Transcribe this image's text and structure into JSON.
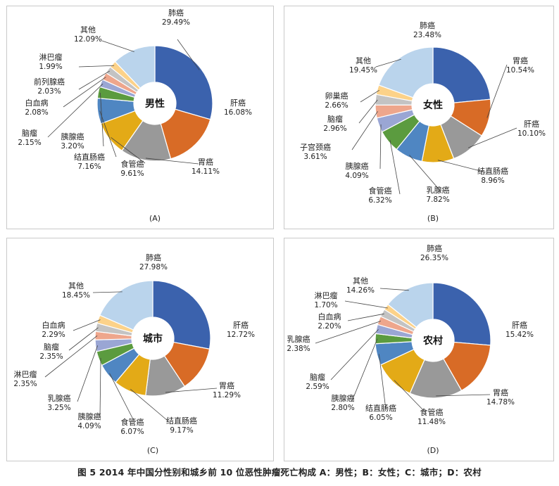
{
  "figure_caption": "图 5   2014 年中国分性别和城乡前 10 位恶性肿瘤死亡构成    A：男性；B：女性；C：城市；D：农村",
  "colors": [
    "#3b62ad",
    "#d86b26",
    "#999999",
    "#e3aa17",
    "#4f86c2",
    "#5b9b3f",
    "#9aa6d4",
    "#eea68c",
    "#c3c3c3",
    "#fcd289",
    "#bad4ec"
  ],
  "chart_data": [
    {
      "type": "pie",
      "panel": "(A)",
      "center_label": "男性",
      "slices": [
        {
          "label": "肺癌",
          "percent_text": "29.49%",
          "value": 29.49,
          "color": "#3b62ad"
        },
        {
          "label": "肝癌",
          "percent_text": "16.08%",
          "value": 16.08,
          "color": "#d86b26"
        },
        {
          "label": "胃癌",
          "percent_text": "14.11%",
          "value": 14.11,
          "color": "#999999"
        },
        {
          "label": "食管癌",
          "percent_text": "9.61%",
          "value": 9.61,
          "color": "#e3aa17"
        },
        {
          "label": "结直肠癌",
          "percent_text": "7.16%",
          "value": 7.16,
          "color": "#4f86c2"
        },
        {
          "label": "胰腺癌",
          "percent_text": "3.20%",
          "value": 3.2,
          "color": "#5b9b3f"
        },
        {
          "label": "脑瘤",
          "percent_text": "2.15%",
          "value": 2.15,
          "color": "#9aa6d4"
        },
        {
          "label": "白血病",
          "percent_text": "2.08%",
          "value": 2.08,
          "color": "#eea68c"
        },
        {
          "label": "前列腺癌",
          "percent_text": "2.03%",
          "value": 2.03,
          "color": "#c3c3c3"
        },
        {
          "label": "淋巴瘤",
          "percent_text": "1.99%",
          "value": 1.99,
          "color": "#fcd289"
        },
        {
          "label": "其他",
          "percent_text": "12.09%",
          "value": 12.09,
          "color": "#bad4ec"
        }
      ]
    },
    {
      "type": "pie",
      "panel": "(B)",
      "center_label": "女性",
      "slices": [
        {
          "label": "肺癌",
          "percent_text": "23.48%",
          "value": 23.48,
          "color": "#3b62ad"
        },
        {
          "label": "胃癌",
          "percent_text": "10.54%",
          "value": 10.54,
          "color": "#d86b26"
        },
        {
          "label": "肝癌",
          "percent_text": "10.10%",
          "value": 10.1,
          "color": "#999999"
        },
        {
          "label": "结直肠癌",
          "percent_text": "8.96%",
          "value": 8.96,
          "color": "#e3aa17"
        },
        {
          "label": "乳腺癌",
          "percent_text": "7.82%",
          "value": 7.82,
          "color": "#4f86c2"
        },
        {
          "label": "食管癌",
          "percent_text": "6.32%",
          "value": 6.32,
          "color": "#5b9b3f"
        },
        {
          "label": "胰腺癌",
          "percent_text": "4.09%",
          "value": 4.09,
          "color": "#9aa6d4"
        },
        {
          "label": "子宫颈癌",
          "percent_text": "3.61%",
          "value": 3.61,
          "color": "#eea68c"
        },
        {
          "label": "脑瘤",
          "percent_text": "2.96%",
          "value": 2.96,
          "color": "#c3c3c3"
        },
        {
          "label": "卵巢癌",
          "percent_text": "2.66%",
          "value": 2.66,
          "color": "#fcd289"
        },
        {
          "label": "其他",
          "percent_text": "19.45%",
          "value": 19.45,
          "color": "#bad4ec"
        }
      ]
    },
    {
      "type": "pie",
      "panel": "(C)",
      "center_label": "城市",
      "slices": [
        {
          "label": "肺癌",
          "percent_text": "27.98%",
          "value": 27.98,
          "color": "#3b62ad"
        },
        {
          "label": "肝癌",
          "percent_text": "12.72%",
          "value": 12.72,
          "color": "#d86b26"
        },
        {
          "label": "胃癌",
          "percent_text": "11.29%",
          "value": 11.29,
          "color": "#999999"
        },
        {
          "label": "结直肠癌",
          "percent_text": "9.17%",
          "value": 9.17,
          "color": "#e3aa17"
        },
        {
          "label": "食管癌",
          "percent_text": "6.07%",
          "value": 6.07,
          "color": "#4f86c2"
        },
        {
          "label": "胰腺癌",
          "percent_text": "4.09%",
          "value": 4.09,
          "color": "#5b9b3f"
        },
        {
          "label": "乳腺癌",
          "percent_text": "3.25%",
          "value": 3.25,
          "color": "#9aa6d4"
        },
        {
          "label": "淋巴瘤",
          "percent_text": "2.35%",
          "value": 2.35,
          "color": "#eea68c"
        },
        {
          "label": "脑瘤",
          "percent_text": "2.35%",
          "value": 2.35,
          "color": "#c3c3c3"
        },
        {
          "label": "白血病",
          "percent_text": "2.29%",
          "value": 2.29,
          "color": "#fcd289"
        },
        {
          "label": "其他",
          "percent_text": "18.45%",
          "value": 18.45,
          "color": "#bad4ec"
        }
      ]
    },
    {
      "type": "pie",
      "panel": "(D)",
      "center_label": "农村",
      "slices": [
        {
          "label": "肺癌",
          "percent_text": "26.35%",
          "value": 26.35,
          "color": "#3b62ad"
        },
        {
          "label": "肝癌",
          "percent_text": "15.42%",
          "value": 15.42,
          "color": "#d86b26"
        },
        {
          "label": "胃癌",
          "percent_text": "14.78%",
          "value": 14.78,
          "color": "#999999"
        },
        {
          "label": "食管癌",
          "percent_text": "11.48%",
          "value": 11.48,
          "color": "#e3aa17"
        },
        {
          "label": "结直肠癌",
          "percent_text": "6.05%",
          "value": 6.05,
          "color": "#4f86c2"
        },
        {
          "label": "胰腺癌",
          "percent_text": "2.80%",
          "value": 2.8,
          "color": "#5b9b3f"
        },
        {
          "label": "脑瘤",
          "percent_text": "2.59%",
          "value": 2.59,
          "color": "#9aa6d4"
        },
        {
          "label": "乳腺癌",
          "percent_text": "2.38%",
          "value": 2.38,
          "color": "#eea68c"
        },
        {
          "label": "白血病",
          "percent_text": "2.20%",
          "value": 2.2,
          "color": "#c3c3c3"
        },
        {
          "label": "淋巴瘤",
          "percent_text": "1.70%",
          "value": 1.7,
          "color": "#fcd289"
        },
        {
          "label": "其他",
          "percent_text": "14.26%",
          "value": 14.26,
          "color": "#bad4ec"
        }
      ]
    }
  ]
}
